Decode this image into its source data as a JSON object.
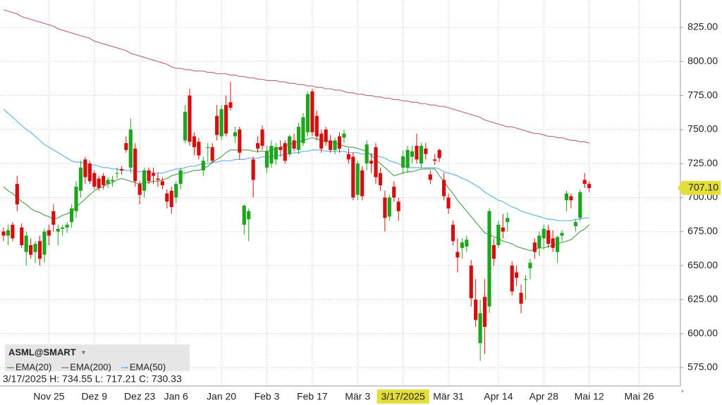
{
  "chart_data": {
    "type": "candlestick",
    "symbol": "ASML@SMART",
    "info": "3/17/2025 H: 734.55 L: 717.21 C: 730.33",
    "up_color": "#1ea51e",
    "down_color": "#d50f0f",
    "grid": true,
    "crosshair": 88,
    "last_price": {
      "value": 707.1,
      "label": "707.10"
    },
    "ylim": [
      561.5,
      845.2
    ],
    "yticks": [
      {
        "value": 575,
        "label": "575.00"
      },
      {
        "value": 600,
        "label": "600.00"
      },
      {
        "value": 625,
        "label": "625.00"
      },
      {
        "value": 650,
        "label": "650.00"
      },
      {
        "value": 675,
        "label": "675.00"
      },
      {
        "value": 700,
        "label": "700.00"
      },
      {
        "value": 725,
        "label": "725.00"
      },
      {
        "value": 750,
        "label": "750.00"
      },
      {
        "value": 775,
        "label": "775.00"
      },
      {
        "value": 800,
        "label": "800.00"
      },
      {
        "value": 825,
        "label": "825.00"
      }
    ],
    "categories": [
      null,
      null,
      null,
      null,
      null,
      null,
      null,
      null,
      null,
      null,
      "Nov 25",
      null,
      null,
      null,
      null,
      null,
      null,
      null,
      null,
      null,
      "Dez 9",
      null,
      null,
      null,
      null,
      null,
      null,
      null,
      null,
      null,
      "Dez 23",
      null,
      null,
      null,
      null,
      null,
      null,
      null,
      "Jan 6",
      null,
      null,
      null,
      null,
      null,
      null,
      null,
      null,
      null,
      "Jan 20",
      null,
      null,
      null,
      null,
      null,
      null,
      null,
      null,
      null,
      "Feb 3",
      null,
      null,
      null,
      null,
      null,
      null,
      null,
      null,
      null,
      "Feb 17",
      null,
      null,
      null,
      null,
      null,
      null,
      null,
      null,
      null,
      "Mär 3",
      null,
      null,
      null,
      null,
      null,
      null,
      null,
      null,
      null,
      "3/17/2025",
      null,
      null,
      null,
      null,
      null,
      null,
      null,
      null,
      null,
      "Mär 31",
      null,
      null,
      null,
      null,
      null,
      null,
      null,
      null,
      null,
      null,
      "Apr 14",
      null,
      null,
      null,
      null,
      null,
      null,
      null,
      null,
      null,
      "Apr 28",
      null,
      null,
      null,
      null,
      null,
      null,
      null,
      null,
      null,
      "Mai 12",
      null,
      null,
      null,
      null,
      null,
      null,
      null,
      null,
      null,
      null,
      "Mai 26",
      null,
      null,
      null,
      null,
      null,
      null,
      null,
      null
    ],
    "ohlc": [
      [
        675,
        678,
        668,
        672
      ],
      [
        672,
        680,
        665,
        676
      ],
      [
        680,
        682,
        668,
        670
      ],
      [
        710,
        716,
        690,
        695
      ],
      [
        678,
        681,
        663,
        665
      ],
      [
        660,
        675,
        650,
        672
      ],
      [
        665,
        670,
        655,
        658
      ],
      [
        660,
        668,
        652,
        666
      ],
      [
        668,
        672,
        650,
        655
      ],
      [
        658,
        677,
        652,
        675
      ],
      [
        676,
        680,
        665,
        672
      ],
      [
        690,
        695,
        675,
        680
      ],
      [
        675,
        680,
        665,
        677
      ],
      [
        677,
        680,
        672,
        678
      ],
      [
        678,
        682,
        674,
        680
      ],
      [
        682,
        695,
        678,
        692
      ],
      [
        690,
        712,
        685,
        708
      ],
      [
        705,
        727,
        700,
        722
      ],
      [
        728,
        730,
        710,
        715
      ],
      [
        725,
        727,
        710,
        712
      ],
      [
        718,
        720,
        706,
        708
      ],
      [
        714,
        716,
        705,
        707
      ],
      [
        716,
        718,
        706,
        709
      ],
      [
        710,
        715,
        707,
        713
      ],
      [
        712,
        716,
        708,
        713
      ],
      [
        718,
        722,
        714,
        718
      ],
      [
        721,
        723,
        717,
        720
      ],
      [
        740,
        745,
        733,
        735
      ],
      [
        722,
        758,
        718,
        750
      ],
      [
        736,
        740,
        708,
        712
      ],
      [
        710,
        712,
        695,
        702
      ],
      [
        705,
        722,
        700,
        720
      ],
      [
        720,
        722,
        710,
        712
      ],
      [
        718,
        722,
        710,
        716
      ],
      [
        714,
        718,
        708,
        713
      ],
      [
        712,
        715,
        706,
        709
      ],
      [
        703,
        706,
        692,
        697
      ],
      [
        705,
        708,
        688,
        693
      ],
      [
        700,
        712,
        696,
        710
      ],
      [
        710,
        722,
        706,
        720
      ],
      [
        742,
        768,
        740,
        763
      ],
      [
        775,
        780,
        738,
        741
      ],
      [
        745,
        748,
        731,
        737
      ],
      [
        741,
        744,
        728,
        731
      ],
      [
        720,
        730,
        716,
        727
      ],
      [
        737,
        740,
        726,
        737
      ],
      [
        737,
        740,
        725,
        727
      ],
      [
        760,
        768,
        742,
        746
      ],
      [
        745,
        768,
        742,
        765
      ],
      [
        768,
        775,
        745,
        747
      ],
      [
        770,
        785,
        764,
        766
      ],
      [
        745,
        752,
        740,
        748
      ],
      [
        750,
        752,
        728,
        733
      ],
      [
        680,
        695,
        673,
        694
      ],
      [
        684,
        692,
        668,
        690
      ],
      [
        728,
        730,
        700,
        713
      ],
      [
        740,
        745,
        733,
        736
      ],
      [
        750,
        753,
        735,
        738
      ],
      [
        722,
        738,
        718,
        734
      ],
      [
        725,
        742,
        722,
        738
      ],
      [
        728,
        740,
        724,
        737
      ],
      [
        737,
        742,
        730,
        735
      ],
      [
        740,
        742,
        725,
        727
      ],
      [
        732,
        746,
        730,
        745
      ],
      [
        742,
        747,
        734,
        736
      ],
      [
        735,
        755,
        732,
        752
      ],
      [
        740,
        762,
        738,
        759
      ],
      [
        748,
        778,
        745,
        776
      ],
      [
        778,
        780,
        745,
        748
      ],
      [
        760,
        764,
        742,
        745
      ],
      [
        747,
        750,
        733,
        736
      ],
      [
        750,
        752,
        738,
        741
      ],
      [
        742,
        746,
        733,
        735
      ],
      [
        735,
        744,
        732,
        742
      ],
      [
        745,
        748,
        733,
        736
      ],
      [
        744,
        750,
        740,
        747
      ],
      [
        732,
        736,
        725,
        728
      ],
      [
        730,
        733,
        698,
        700
      ],
      [
        702,
        727,
        698,
        725
      ],
      [
        720,
        723,
        698,
        701
      ],
      [
        725,
        742,
        720,
        739
      ],
      [
        727,
        732,
        718,
        725
      ],
      [
        737,
        740,
        710,
        715
      ],
      [
        718,
        722,
        705,
        709
      ],
      [
        700,
        705,
        675,
        685
      ],
      [
        686,
        702,
        683,
        700
      ],
      [
        708,
        712,
        697,
        700
      ],
      [
        697,
        700,
        683,
        690
      ],
      [
        722,
        734.55,
        717.21,
        730.33
      ],
      [
        722,
        738,
        718,
        735
      ],
      [
        730,
        738,
        725,
        734
      ],
      [
        738,
        747,
        725,
        728
      ],
      [
        725,
        740,
        722,
        738
      ],
      [
        736,
        740,
        728,
        732
      ],
      [
        717,
        720,
        710,
        713
      ],
      [
        728,
        732,
        724,
        727
      ],
      [
        735,
        736,
        726,
        729
      ],
      [
        713,
        718,
        698,
        701
      ],
      [
        700,
        703,
        688,
        692
      ],
      [
        680,
        683,
        665,
        668
      ],
      [
        660,
        670,
        645,
        656
      ],
      [
        663,
        670,
        655,
        667
      ],
      [
        664,
        672,
        660,
        669
      ],
      [
        650,
        654,
        620,
        626
      ],
      [
        625,
        640,
        605,
        610
      ],
      [
        593,
        625,
        580,
        615
      ],
      [
        627,
        640,
        585,
        605
      ],
      [
        620,
        692,
        615,
        690
      ],
      [
        665,
        670,
        650,
        655
      ],
      [
        665,
        683,
        663,
        680
      ],
      [
        678,
        688,
        670,
        675
      ],
      [
        682,
        689,
        675,
        685
      ],
      [
        650,
        653,
        628,
        631
      ],
      [
        645,
        650,
        635,
        641
      ],
      [
        630,
        636,
        615,
        622
      ],
      [
        640,
        643,
        625,
        640
      ],
      [
        648,
        655,
        640,
        652
      ],
      [
        667,
        670,
        655,
        660
      ],
      [
        663,
        675,
        657,
        672
      ],
      [
        670,
        680,
        662,
        677
      ],
      [
        676,
        680,
        663,
        666
      ],
      [
        670,
        676,
        660,
        663
      ],
      [
        660,
        672,
        652,
        671
      ],
      [
        672,
        676,
        668,
        674
      ],
      [
        698,
        705,
        690,
        703
      ],
      [
        701,
        703,
        692,
        698
      ],
      [
        679,
        684,
        675,
        682
      ],
      [
        685,
        706,
        683,
        704
      ],
      [
        713,
        718,
        707,
        710
      ],
      [
        710,
        712,
        704,
        707
      ],
      null,
      null,
      null,
      null,
      null,
      null,
      null,
      null,
      null,
      null,
      null,
      null,
      null,
      null,
      null,
      null,
      null,
      null,
      null
    ],
    "series": [
      {
        "name": "EMA(20)",
        "color": "#55a355",
        "values": [
          708,
          705,
          703,
          700,
          697,
          695,
          692,
          690,
          689,
          687,
          686,
          684,
          685,
          687,
          688,
          690,
          693,
          696,
          699,
          702,
          705,
          707,
          708,
          710,
          711,
          713,
          714,
          713,
          712,
          711,
          710,
          711,
          711,
          712,
          712,
          713,
          714,
          716,
          717,
          718,
          718,
          719,
          720,
          720,
          721,
          723,
          726,
          728,
          730,
          733,
          735,
          735,
          735,
          735,
          735,
          734,
          734,
          734,
          734,
          735,
          736,
          737,
          738,
          739,
          740,
          741,
          742,
          743,
          744,
          743,
          742,
          741,
          741,
          740,
          739,
          738,
          737,
          737,
          736,
          735,
          734,
          731,
          728,
          725,
          722,
          719,
          716,
          717,
          718,
          719,
          719,
          720,
          721,
          721,
          721,
          721,
          716,
          712,
          707,
          703,
          698,
          694,
          690,
          686,
          682,
          678,
          674,
          673,
          671,
          670,
          668,
          667,
          666,
          664,
          663,
          662,
          661,
          662,
          663,
          663,
          664,
          665,
          666,
          667,
          668,
          669,
          672,
          675,
          677,
          680,
          null,
          null,
          null,
          null,
          null,
          null,
          null,
          null,
          null,
          null,
          null,
          null,
          null,
          null,
          null,
          null,
          null,
          null,
          null
        ]
      },
      {
        "name": "EMA(200)",
        "color": "#c26b80",
        "values": [
          838,
          837,
          836,
          835,
          833,
          832,
          831,
          830,
          829,
          828,
          827,
          826,
          824,
          823,
          822,
          821,
          820,
          819,
          818,
          817,
          815,
          814,
          813,
          812,
          811,
          810,
          809,
          808,
          806,
          805,
          804,
          803,
          802,
          801,
          800,
          799,
          798,
          796,
          795,
          795,
          794,
          794,
          793,
          793,
          793,
          792,
          792,
          791,
          791,
          791,
          790,
          790,
          789,
          789,
          788,
          788,
          787,
          787,
          786,
          786,
          786,
          785,
          785,
          784,
          784,
          783,
          783,
          782,
          782,
          781,
          781,
          780,
          780,
          779,
          779,
          778,
          777,
          777,
          776,
          776,
          775,
          775,
          774,
          774,
          773,
          773,
          772,
          772,
          771,
          771,
          770,
          770,
          769,
          769,
          768,
          768,
          767,
          767,
          766,
          765,
          764,
          763,
          762,
          761,
          760,
          759,
          757,
          756,
          755,
          754,
          753,
          752,
          752,
          751,
          750,
          749,
          748,
          747,
          747,
          746,
          745,
          745,
          744,
          744,
          743,
          742,
          742,
          741,
          741,
          740,
          null,
          null,
          null,
          null,
          null,
          null,
          null,
          null,
          null,
          null,
          null,
          null,
          null,
          null,
          null,
          null,
          null,
          null,
          null
        ]
      },
      {
        "name": "EMA(50)",
        "color": "#62b6ea",
        "values": [
          765,
          762,
          759,
          756,
          753,
          750,
          748,
          745,
          742,
          739,
          737,
          735,
          733,
          731,
          729,
          727,
          726,
          726,
          725,
          724,
          724,
          723,
          722,
          722,
          721,
          721,
          720,
          720,
          720,
          719,
          719,
          719,
          719,
          718,
          718,
          718,
          719,
          720,
          721,
          721,
          722,
          723,
          723,
          724,
          725,
          725,
          726,
          726,
          727,
          727,
          727,
          728,
          728,
          728,
          729,
          729,
          729,
          730,
          730,
          730,
          731,
          731,
          732,
          732,
          733,
          733,
          734,
          734,
          735,
          735,
          735,
          734,
          734,
          734,
          734,
          734,
          733,
          733,
          733,
          732,
          732,
          732,
          731,
          730,
          729,
          727,
          726,
          725,
          723,
          722,
          722,
          722,
          722,
          722,
          722,
          722,
          721,
          719,
          718,
          717,
          716,
          714,
          713,
          711,
          709,
          707,
          704,
          702,
          700,
          698,
          697,
          695,
          693,
          692,
          690,
          689,
          688,
          687,
          686,
          685,
          684,
          684,
          683,
          683,
          683,
          683,
          684,
          684,
          685,
          685,
          null,
          null,
          null,
          null,
          null,
          null,
          null,
          null,
          null,
          null,
          null,
          null,
          null,
          null,
          null,
          null,
          null,
          null,
          null
        ]
      }
    ]
  }
}
